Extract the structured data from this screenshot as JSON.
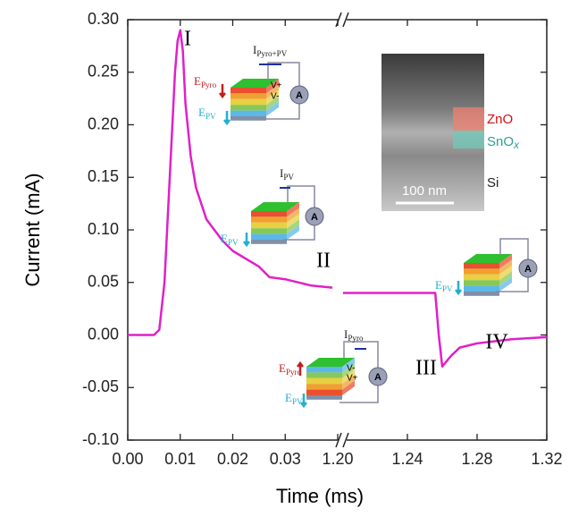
{
  "chart_data": {
    "type": "line",
    "x_label": "Time (ms)",
    "y_label": "Current (mA)",
    "color": "#e020c8",
    "ylim": [
      -0.1,
      0.3
    ],
    "yticks": [
      {
        "value": -0.1,
        "label": "-0.10"
      },
      {
        "value": -0.05,
        "label": "-0.05"
      },
      {
        "value": 0,
        "label": "0.00"
      },
      {
        "value": 0.05,
        "label": "0.05"
      },
      {
        "value": 0.1,
        "label": "0.10"
      },
      {
        "value": 0.15,
        "label": "0.15"
      },
      {
        "value": 0.2,
        "label": "0.20"
      },
      {
        "value": 0.25,
        "label": "0.25"
      },
      {
        "value": 0.3,
        "label": "0.30"
      }
    ],
    "x_segments": [
      {
        "xlim": [
          0,
          0.04
        ],
        "xticks": [
          {
            "value": 0,
            "label": "0.00"
          },
          {
            "value": 0.01,
            "label": "0.01"
          },
          {
            "value": 0.02,
            "label": "0.02"
          },
          {
            "value": 0.03,
            "label": "0.03"
          }
        ],
        "x": [
          0,
          0.005,
          0.006,
          0.007,
          0.008,
          0.009,
          0.0095,
          0.01,
          0.0105,
          0.011,
          0.012,
          0.013,
          0.015,
          0.018,
          0.02,
          0.025,
          0.027,
          0.03,
          0.035,
          0.039
        ],
        "values": [
          0,
          0,
          0.005,
          0.05,
          0.15,
          0.25,
          0.28,
          0.29,
          0.27,
          0.22,
          0.17,
          0.14,
          0.11,
          0.09,
          0.08,
          0.065,
          0.055,
          0.053,
          0.047,
          0.045
        ]
      },
      {
        "xlim": [
          1.2,
          1.32
        ],
        "xticks": [
          {
            "value": 1.2,
            "label": "1.20"
          },
          {
            "value": 1.24,
            "label": "1.24"
          },
          {
            "value": 1.28,
            "label": "1.28"
          },
          {
            "value": 1.32,
            "label": "1.32"
          }
        ],
        "x": [
          1.203,
          1.25,
          1.256,
          1.258,
          1.26,
          1.265,
          1.27,
          1.28,
          1.3,
          1.32
        ],
        "values": [
          0.04,
          0.04,
          0.04,
          0,
          -0.03,
          -0.02,
          -0.012,
          -0.008,
          -0.004,
          -0.002
        ]
      }
    ],
    "stage_labels": [
      "I",
      "II",
      "III",
      "IV"
    ],
    "inset_labels": {
      "zno": "ZnO",
      "snox": {
        "main": "SnO",
        "sub": "x"
      },
      "si": "Si",
      "scale": "100 nm"
    },
    "diagram_labels": {
      "i_pyro_pv": {
        "main": "I",
        "sub": "Pyro+PV"
      },
      "i_pv": {
        "main": "I",
        "sub": "PV"
      },
      "i_pyro": {
        "main": "I",
        "sub": "Pyro"
      },
      "e_pyro": {
        "main": "E",
        "sub": "Pyro"
      },
      "e_pv": {
        "main": "E",
        "sub": "PV"
      },
      "v_plus": "V+",
      "v_minus": "V-",
      "ammeter": "A"
    }
  }
}
